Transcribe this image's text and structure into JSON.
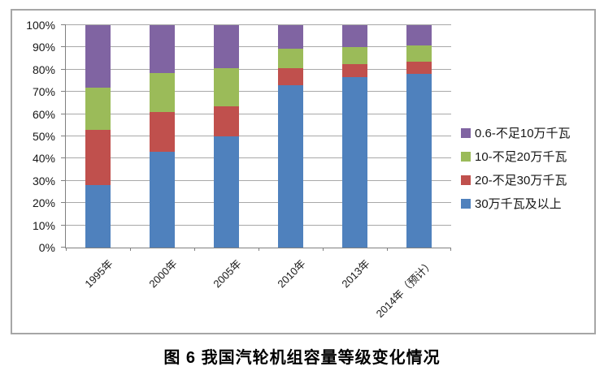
{
  "figure_caption": "图 6  我国汽轮机组容量等级变化情况",
  "chart_data": {
    "type": "bar",
    "stacked": true,
    "percent": true,
    "title": "",
    "xlabel": "",
    "ylabel": "",
    "ylim": [
      0,
      100
    ],
    "grid": true,
    "legend_position": "right",
    "categories": [
      "1995年",
      "2000年",
      "2005年",
      "2010年",
      "2013年",
      "2014年（预计）"
    ],
    "y_ticks": [
      "0%",
      "10%",
      "20%",
      "30%",
      "40%",
      "50%",
      "60%",
      "70%",
      "80%",
      "90%",
      "100%"
    ],
    "series": [
      {
        "name": "30万千瓦及以上",
        "color": "#4F81BD",
        "values": [
          28,
          43,
          50,
          73,
          76.5,
          78
        ]
      },
      {
        "name": "20-不足30万千瓦",
        "color": "#C0504D",
        "values": [
          25,
          18,
          13.5,
          7.5,
          6,
          5.5
        ]
      },
      {
        "name": "10-不足20万千瓦",
        "color": "#9BBB59",
        "values": [
          19,
          17.5,
          17,
          9,
          7.5,
          7.5
        ]
      },
      {
        "name": "0.6-不足10万千瓦",
        "color": "#8064A2",
        "values": [
          28,
          21.5,
          19.5,
          10.5,
          10,
          9
        ]
      }
    ],
    "legend_order": "reverse_of_series",
    "colors": {
      "gridline": "#a8a8a8",
      "axis": "#808080",
      "figure_border": "#a6a6a6",
      "text": "#171717"
    }
  }
}
